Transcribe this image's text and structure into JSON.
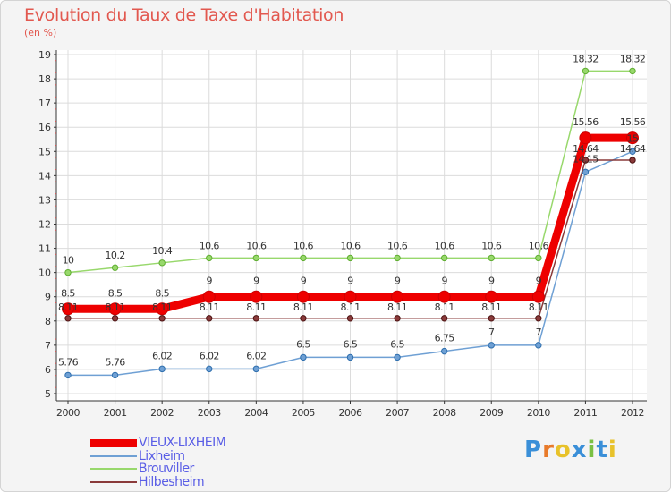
{
  "chart_data": {
    "type": "line",
    "title": "Evolution du Taux de Taxe d'Habitation",
    "subtitle": "(en %)",
    "categories": [
      "2000",
      "2001",
      "2002",
      "2003",
      "2004",
      "2005",
      "2006",
      "2007",
      "2008",
      "2009",
      "2010",
      "2011",
      "2012"
    ],
    "ylim": [
      5,
      19
    ],
    "yticks": [
      5,
      6,
      7,
      8,
      9,
      10,
      11,
      12,
      13,
      14,
      15,
      16,
      17,
      18,
      19
    ],
    "grid": true,
    "legend_position": "bottom-left",
    "series": [
      {
        "name": "VIEUX-LIXHEIM",
        "color": "#ee0000",
        "values": [
          8.5,
          8.5,
          8.5,
          9,
          9,
          9,
          9,
          9,
          9,
          9,
          9,
          15.56,
          15.56
        ],
        "labels": [
          "8.5",
          "8.5",
          "8.5",
          "9",
          "9",
          "9",
          "9",
          "9",
          "9",
          "9",
          "9",
          "15.56",
          "15.56"
        ]
      },
      {
        "name": "Lixheim",
        "color": "#6fa0d4",
        "values": [
          5.76,
          5.76,
          6.02,
          6.02,
          6.02,
          6.5,
          6.5,
          6.5,
          6.75,
          7,
          7,
          14.15,
          15
        ],
        "labels": [
          "5.76",
          "5.76",
          "6.02",
          "6.02",
          "6.02",
          "6.5",
          "6.5",
          "6.5",
          "6.75",
          "7",
          "7",
          "14.15",
          "15"
        ]
      },
      {
        "name": "Brouviller",
        "color": "#98d86c",
        "values": [
          10,
          10.2,
          10.4,
          10.6,
          10.6,
          10.6,
          10.6,
          10.6,
          10.6,
          10.6,
          10.6,
          18.32,
          18.32
        ],
        "labels": [
          "10",
          "10.2",
          "10.4",
          "10.6",
          "10.6",
          "10.6",
          "10.6",
          "10.6",
          "10.6",
          "10.6",
          "10.6",
          "18.32",
          "18.32"
        ]
      },
      {
        "name": "Hilbesheim",
        "color": "#8a3a3a",
        "values": [
          8.11,
          8.11,
          8.11,
          8.11,
          8.11,
          8.11,
          8.11,
          8.11,
          8.11,
          8.11,
          8.11,
          14.64,
          14.64
        ],
        "labels": [
          "8.11",
          "8.11",
          "8.11",
          "8.11",
          "8.11",
          "8.11",
          "8.11",
          "8.11",
          "8.11",
          "8.11",
          "8.11",
          "14.64",
          "14.64"
        ]
      }
    ]
  },
  "logo": {
    "letters": [
      "P",
      "r",
      "o",
      "x",
      "i",
      "t",
      "i"
    ],
    "colors": [
      "#3a8fd8",
      "#e87a2a",
      "#e8c22a",
      "#3a8fd8",
      "#7ac043",
      "#3a8fd8",
      "#e8c22a"
    ]
  }
}
